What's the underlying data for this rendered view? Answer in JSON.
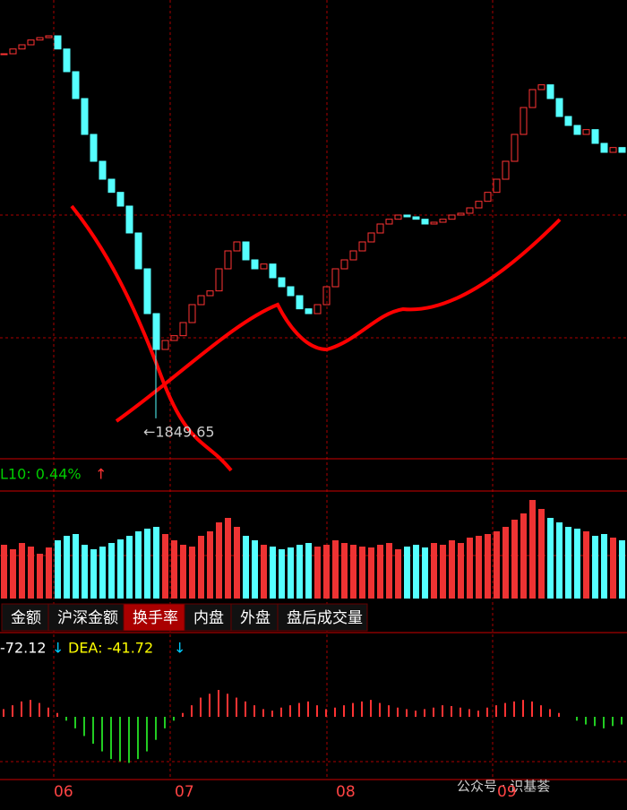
{
  "price_chart": {
    "closes": [
      2460,
      2468,
      2475,
      2483,
      2487,
      2490,
      2468,
      2430,
      2385,
      2325,
      2280,
      2250,
      2228,
      2205,
      2160,
      2100,
      2025,
      1965,
      1980,
      1988,
      2010,
      2040,
      2055,
      2063,
      2100,
      2130,
      2145,
      2115,
      2100,
      2108,
      2085,
      2070,
      2055,
      2033,
      2025,
      2040,
      2070,
      2100,
      2115,
      2130,
      2145,
      2160,
      2175,
      2183,
      2190,
      2187,
      2183,
      2175,
      2178,
      2183,
      2190,
      2193,
      2202,
      2213,
      2228,
      2250,
      2280,
      2325,
      2370,
      2400,
      2408,
      2385,
      2355,
      2340,
      2325,
      2333,
      2310,
      2295,
      2303,
      2295
    ],
    "ylim": [
      1800,
      2550
    ],
    "low_label": "←1849.65",
    "low_value": 1849.65
  },
  "volume": {
    "label": "L10: 0.44%",
    "arrow": "↑",
    "values": [
      60,
      55,
      62,
      58,
      50,
      57,
      65,
      70,
      72,
      60,
      55,
      58,
      62,
      66,
      70,
      75,
      78,
      80,
      72,
      65,
      60,
      58,
      70,
      75,
      85,
      90,
      80,
      70,
      65,
      60,
      58,
      55,
      57,
      60,
      62,
      58,
      60,
      65,
      62,
      60,
      58,
      57,
      60,
      62,
      55,
      58,
      60,
      57,
      62,
      60,
      65,
      62,
      68,
      70,
      72,
      75,
      80,
      88,
      95,
      110,
      100,
      90,
      85,
      80,
      78,
      75,
      70,
      72,
      68,
      65
    ],
    "ylim": [
      0,
      120
    ]
  },
  "tabs": [
    "金额",
    "沪深金额",
    "换手率",
    "内盘",
    "外盘",
    "盘后成交量"
  ],
  "active_tab": 2,
  "macd": {
    "dif_label": "-72.12",
    "dif_arrow": "↓",
    "dea_label": "DEA: -41.72",
    "dea_arrow": "↓",
    "values": [
      10,
      15,
      20,
      22,
      18,
      12,
      5,
      -5,
      -15,
      -25,
      -35,
      -45,
      -55,
      -58,
      -60,
      -55,
      -45,
      -30,
      -15,
      -5,
      5,
      15,
      25,
      30,
      35,
      30,
      25,
      20,
      15,
      10,
      8,
      12,
      15,
      18,
      20,
      15,
      10,
      12,
      15,
      18,
      20,
      22,
      18,
      15,
      12,
      10,
      8,
      10,
      12,
      15,
      14,
      12,
      10,
      8,
      12,
      15,
      18,
      20,
      22,
      20,
      15,
      10,
      5,
      0,
      -5,
      -10,
      -12,
      -15,
      -12,
      -10
    ],
    "ylim": [
      -70,
      70
    ]
  },
  "x_axis": [
    "06",
    "07",
    "08",
    "09"
  ],
  "watermark": "公众号 · 识基荟"
}
